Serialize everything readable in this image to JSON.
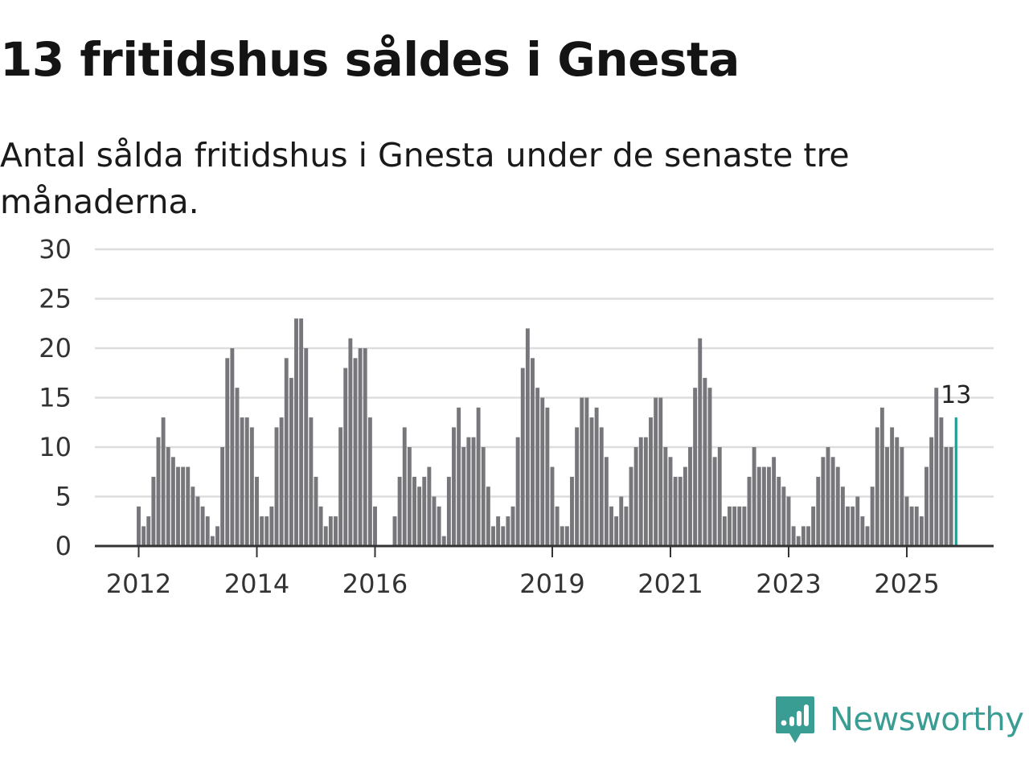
{
  "title": "13 fritidshus såldes i Gnesta",
  "subtitle": "Antal sålda fritidshus i Gnesta under de senaste tre månaderna.",
  "brand": {
    "name": "Newsworthy",
    "color": "#3a9d94"
  },
  "colors": {
    "bar": "#77767b",
    "highlight": "#1f9e94",
    "grid": "#dddddd",
    "axis": "#333333"
  },
  "chart_data": {
    "type": "bar",
    "title": "13 fritidshus såldes i Gnesta",
    "xlabel": "",
    "ylabel": "",
    "ylim": [
      0,
      30
    ],
    "y_ticks": [
      0,
      5,
      10,
      15,
      20,
      25,
      30
    ],
    "x_ticks": [
      {
        "label": "2012",
        "index": 0
      },
      {
        "label": "2014",
        "index": 24
      },
      {
        "label": "2016",
        "index": 48
      },
      {
        "label": "2019",
        "index": 84
      },
      {
        "label": "2021",
        "index": 108
      },
      {
        "label": "2023",
        "index": 132
      },
      {
        "label": "2025",
        "index": 156
      }
    ],
    "index_range": [
      -9,
      173
    ],
    "start_index": 0,
    "grid": true,
    "values": [
      4,
      2,
      3,
      7,
      11,
      13,
      10,
      9,
      8,
      8,
      8,
      6,
      5,
      4,
      3,
      1,
      2,
      10,
      19,
      20,
      16,
      13,
      13,
      12,
      7,
      3,
      3,
      4,
      12,
      13,
      19,
      17,
      23,
      23,
      20,
      13,
      7,
      4,
      2,
      3,
      3,
      12,
      18,
      21,
      19,
      20,
      20,
      13,
      4,
      0,
      0,
      0,
      3,
      7,
      12,
      10,
      7,
      6,
      7,
      8,
      5,
      4,
      1,
      7,
      12,
      14,
      10,
      11,
      11,
      14,
      10,
      6,
      2,
      3,
      2,
      3,
      4,
      11,
      18,
      22,
      19,
      16,
      15,
      14,
      8,
      4,
      2,
      2,
      7,
      12,
      15,
      15,
      13,
      14,
      12,
      9,
      4,
      3,
      5,
      4,
      8,
      10,
      11,
      11,
      13,
      15,
      15,
      10,
      9,
      7,
      7,
      8,
      10,
      16,
      21,
      17,
      16,
      9,
      10,
      3,
      4,
      4,
      4,
      4,
      7,
      10,
      8,
      8,
      8,
      9,
      7,
      6,
      5,
      2,
      1,
      2,
      2,
      4,
      7,
      9,
      10,
      9,
      8,
      6,
      4,
      4,
      5,
      3,
      2,
      6,
      12,
      14,
      10,
      12,
      11,
      10,
      5,
      4,
      4,
      3,
      8,
      11,
      16,
      13,
      10,
      10,
      13
    ],
    "highlight_last": true,
    "annotations": [
      {
        "label": "13",
        "target": "last"
      }
    ]
  }
}
